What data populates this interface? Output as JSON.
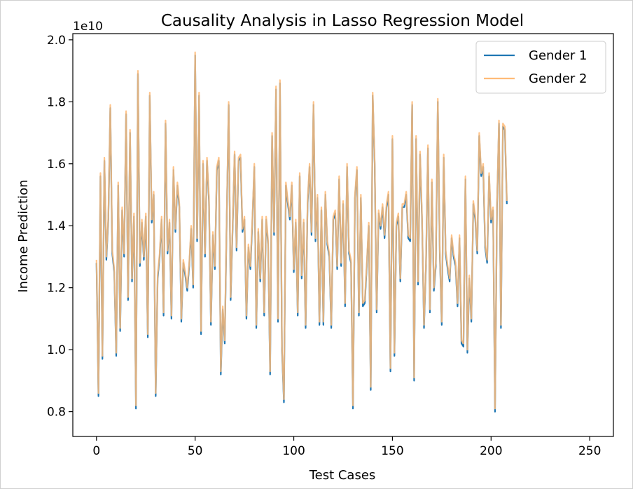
{
  "chart_data": {
    "type": "line",
    "title": "Causality Analysis in Lasso Regression Model",
    "xlabel": "Test Cases",
    "ylabel": "Income Prediction",
    "y_offset_label": "1e10",
    "xlim": [
      -12,
      262
    ],
    "ylim": [
      0.72,
      2.02
    ],
    "x_ticks": [
      0,
      50,
      100,
      150,
      200,
      250
    ],
    "y_ticks": [
      0.8,
      1.0,
      1.2,
      1.4,
      1.6,
      1.8,
      2.0
    ],
    "y_tick_labels": [
      "0.8",
      "1.0",
      "1.2",
      "1.4",
      "1.6",
      "1.8",
      "2.0"
    ],
    "legend_position": "top-right",
    "grid": false,
    "colors": {
      "gender1": "#1f77b4",
      "gender2": "#ffbb78"
    },
    "series": [
      {
        "name": "Gender 1",
        "color": "#1f77b4",
        "values": [
          1.28,
          0.85,
          1.56,
          0.97,
          1.61,
          1.29,
          1.42,
          1.78,
          1.31,
          1.25,
          0.98,
          1.53,
          1.06,
          1.45,
          1.3,
          1.76,
          1.16,
          1.7,
          1.22,
          1.43,
          0.81,
          1.89,
          1.27,
          1.41,
          1.29,
          1.43,
          1.04,
          1.82,
          1.41,
          1.5,
          0.85,
          1.23,
          1.3,
          1.42,
          1.11,
          1.73,
          1.31,
          1.41,
          1.1,
          1.58,
          1.38,
          1.53,
          1.46,
          1.09,
          1.28,
          1.24,
          1.19,
          1.27,
          1.39,
          1.2,
          1.95,
          1.35,
          1.82,
          1.05,
          1.6,
          1.3,
          1.61,
          1.48,
          1.08,
          1.37,
          1.26,
          1.58,
          1.61,
          0.92,
          1.13,
          1.02,
          1.42,
          1.79,
          1.16,
          1.39,
          1.63,
          1.32,
          1.61,
          1.62,
          1.38,
          1.42,
          1.1,
          1.33,
          1.26,
          1.41,
          1.59,
          1.07,
          1.38,
          1.22,
          1.42,
          1.11,
          1.42,
          1.34,
          0.92,
          1.69,
          1.37,
          1.84,
          1.09,
          1.86,
          1.0,
          0.83,
          1.53,
          1.47,
          1.42,
          1.53,
          1.25,
          1.41,
          1.11,
          1.56,
          1.23,
          1.41,
          1.07,
          1.47,
          1.59,
          1.37,
          1.79,
          1.35,
          1.49,
          1.08,
          1.45,
          1.08,
          1.5,
          1.34,
          1.3,
          1.07,
          1.42,
          1.44,
          1.26,
          1.55,
          1.27,
          1.47,
          1.14,
          1.59,
          1.31,
          1.28,
          0.81,
          1.49,
          1.58,
          1.11,
          1.49,
          1.14,
          1.15,
          1.27,
          1.4,
          0.87,
          1.82,
          1.6,
          1.12,
          1.44,
          1.39,
          1.46,
          1.36,
          1.46,
          1.5,
          0.93,
          1.68,
          0.98,
          1.4,
          1.43,
          1.22,
          1.46,
          1.46,
          1.5,
          1.36,
          1.35,
          1.79,
          0.9,
          1.68,
          1.21,
          1.63,
          1.42,
          1.07,
          1.27,
          1.65,
          1.12,
          1.54,
          1.19,
          1.27,
          1.8,
          1.31,
          1.08,
          1.62,
          1.31,
          1.26,
          1.22,
          1.36,
          1.3,
          1.27,
          1.14,
          1.36,
          1.02,
          1.01,
          1.55,
          0.99,
          1.23,
          1.09,
          1.47,
          1.42,
          1.31,
          1.69,
          1.56,
          1.59,
          1.33,
          1.28,
          1.56,
          1.41,
          1.45,
          0.8,
          1.46,
          1.73,
          1.07,
          1.72,
          1.71,
          1.47
        ]
      },
      {
        "name": "Gender 2",
        "color": "#ffbb78",
        "values": [
          1.29,
          0.86,
          1.57,
          0.98,
          1.62,
          1.3,
          1.43,
          1.79,
          1.32,
          1.26,
          0.99,
          1.54,
          1.07,
          1.46,
          1.31,
          1.77,
          1.17,
          1.71,
          1.23,
          1.44,
          0.82,
          1.9,
          1.28,
          1.42,
          1.3,
          1.44,
          1.05,
          1.83,
          1.42,
          1.51,
          0.86,
          1.24,
          1.31,
          1.43,
          1.12,
          1.74,
          1.32,
          1.42,
          1.11,
          1.59,
          1.39,
          1.54,
          1.47,
          1.1,
          1.29,
          1.25,
          1.2,
          1.28,
          1.4,
          1.21,
          1.96,
          1.36,
          1.83,
          1.06,
          1.61,
          1.31,
          1.62,
          1.49,
          1.09,
          1.38,
          1.27,
          1.59,
          1.62,
          0.93,
          1.14,
          1.03,
          1.43,
          1.8,
          1.17,
          1.4,
          1.64,
          1.33,
          1.62,
          1.63,
          1.39,
          1.43,
          1.11,
          1.34,
          1.27,
          1.42,
          1.6,
          1.08,
          1.39,
          1.23,
          1.43,
          1.12,
          1.43,
          1.35,
          0.93,
          1.7,
          1.38,
          1.85,
          1.1,
          1.87,
          1.01,
          0.84,
          1.54,
          1.48,
          1.43,
          1.54,
          1.26,
          1.42,
          1.12,
          1.57,
          1.24,
          1.42,
          1.08,
          1.48,
          1.6,
          1.38,
          1.8,
          1.36,
          1.5,
          1.09,
          1.46,
          1.09,
          1.51,
          1.35,
          1.31,
          1.08,
          1.43,
          1.45,
          1.27,
          1.56,
          1.28,
          1.48,
          1.15,
          1.6,
          1.32,
          1.29,
          0.82,
          1.5,
          1.59,
          1.12,
          1.5,
          1.15,
          1.16,
          1.28,
          1.41,
          0.88,
          1.83,
          1.61,
          1.13,
          1.45,
          1.4,
          1.47,
          1.37,
          1.47,
          1.51,
          0.94,
          1.69,
          0.99,
          1.41,
          1.44,
          1.23,
          1.47,
          1.47,
          1.51,
          1.37,
          1.36,
          1.8,
          0.91,
          1.69,
          1.22,
          1.64,
          1.43,
          1.08,
          1.28,
          1.66,
          1.13,
          1.55,
          1.2,
          1.28,
          1.81,
          1.32,
          1.09,
          1.63,
          1.32,
          1.27,
          1.23,
          1.37,
          1.31,
          1.28,
          1.15,
          1.37,
          1.03,
          1.02,
          1.56,
          1.0,
          1.24,
          1.1,
          1.48,
          1.43,
          1.32,
          1.7,
          1.57,
          1.6,
          1.34,
          1.29,
          1.57,
          1.42,
          1.46,
          0.81,
          1.47,
          1.74,
          1.08,
          1.73,
          1.72,
          1.48
        ]
      }
    ]
  }
}
